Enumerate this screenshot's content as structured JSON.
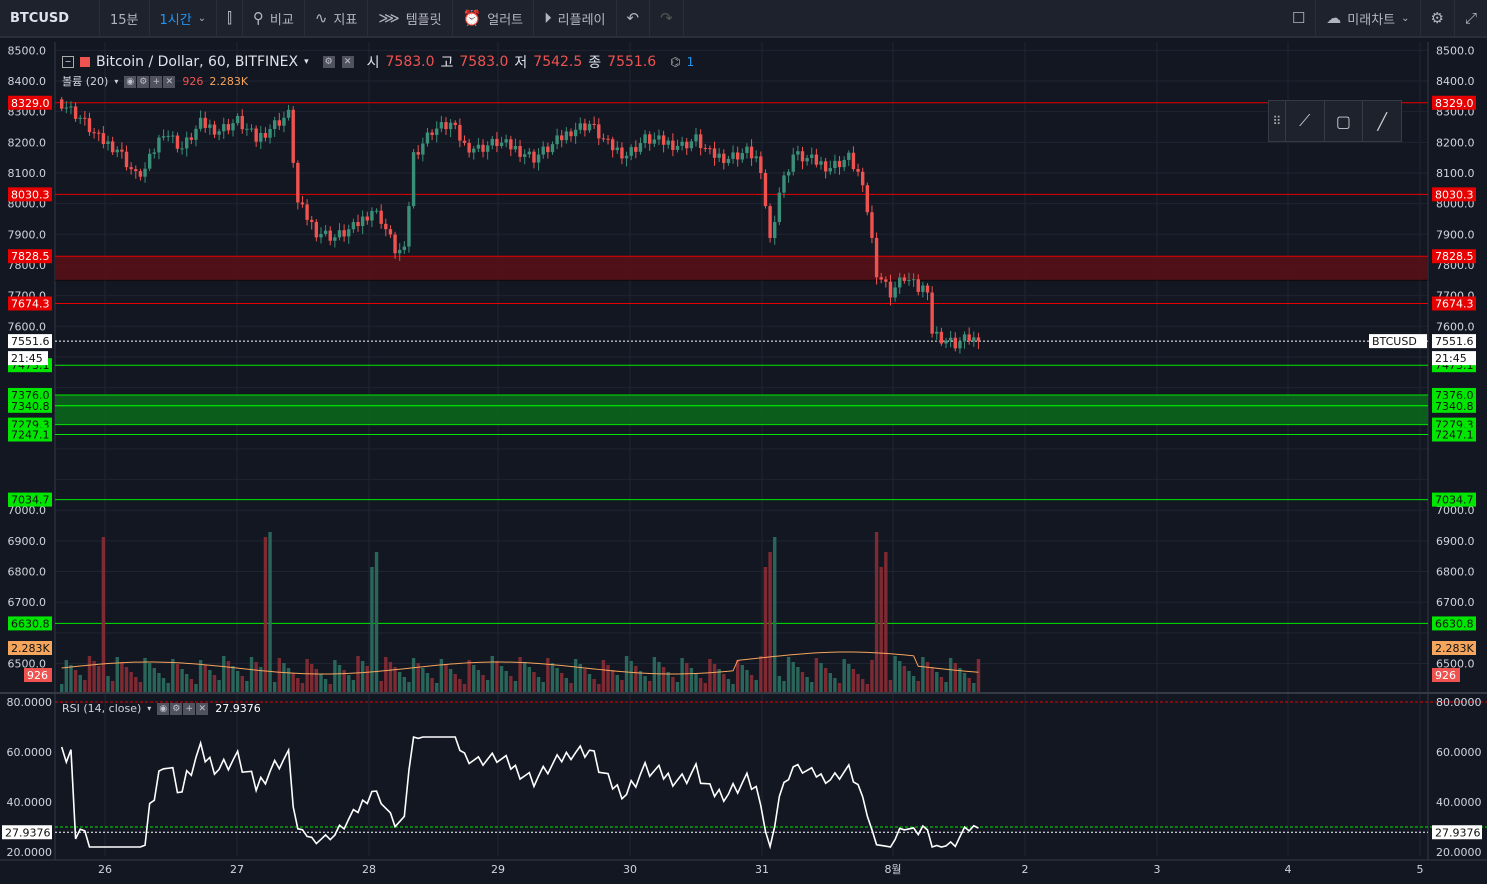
{
  "toolbar": {
    "symbol": "BTCUSD",
    "interval_15": "15분",
    "interval_1h": "1시간",
    "compare": "비교",
    "indicators": "지표",
    "templates": "템플릿",
    "alert": "얼러트",
    "replay": "리플레이",
    "future_chart": "미래차트"
  },
  "legend": {
    "title": "Bitcoin / Dollar, 60, BITFINEX",
    "open_label": "시",
    "open": "7583.0",
    "high_label": "고",
    "high": "7583.0",
    "low_label": "저",
    "low": "7542.5",
    "close_label": "종",
    "close": "7551.6",
    "extra": "1",
    "volume_label": "볼륨 (20)",
    "volume_value": "926",
    "volume_ma": "2.283K",
    "rsi_label": "RSI (14, close)",
    "rsi_value": "27.9376"
  },
  "colors": {
    "up": "#3b8f79",
    "down": "#ef5350",
    "bg": "#131722",
    "support": "#00e600",
    "resistance": "#e60000"
  },
  "price_axis": {
    "ticks": [
      "8500.0",
      "8400.0",
      "8300.0",
      "8200.0",
      "8100.0",
      "8000.0",
      "7900.0",
      "7800.0",
      "7700.0",
      "7600.0",
      "7000.0",
      "6900.0",
      "6800.0",
      "6700.0",
      "6500.0"
    ],
    "red_labels": [
      "8329.0",
      "8030.3",
      "7828.5",
      "7674.3"
    ],
    "green_labels": [
      "7473.1",
      "7376.0",
      "7341.2",
      "7340.8",
      "7279.3",
      "7247.1",
      "7034.7",
      "6630.8"
    ],
    "last_price": "7551.6",
    "countdown": "21:45",
    "symbol_tag": "BTCUSD",
    "vol_ma_tag": "2.283K",
    "vol_tag": "926"
  },
  "rsi_axis": {
    "ticks": [
      "80.0000",
      "60.0000",
      "40.0000",
      "20.0000"
    ],
    "current": "27.9376"
  },
  "time_axis": [
    "26",
    "27",
    "28",
    "29",
    "30",
    "31",
    "8월",
    "2",
    "3",
    "4",
    "5"
  ]
}
